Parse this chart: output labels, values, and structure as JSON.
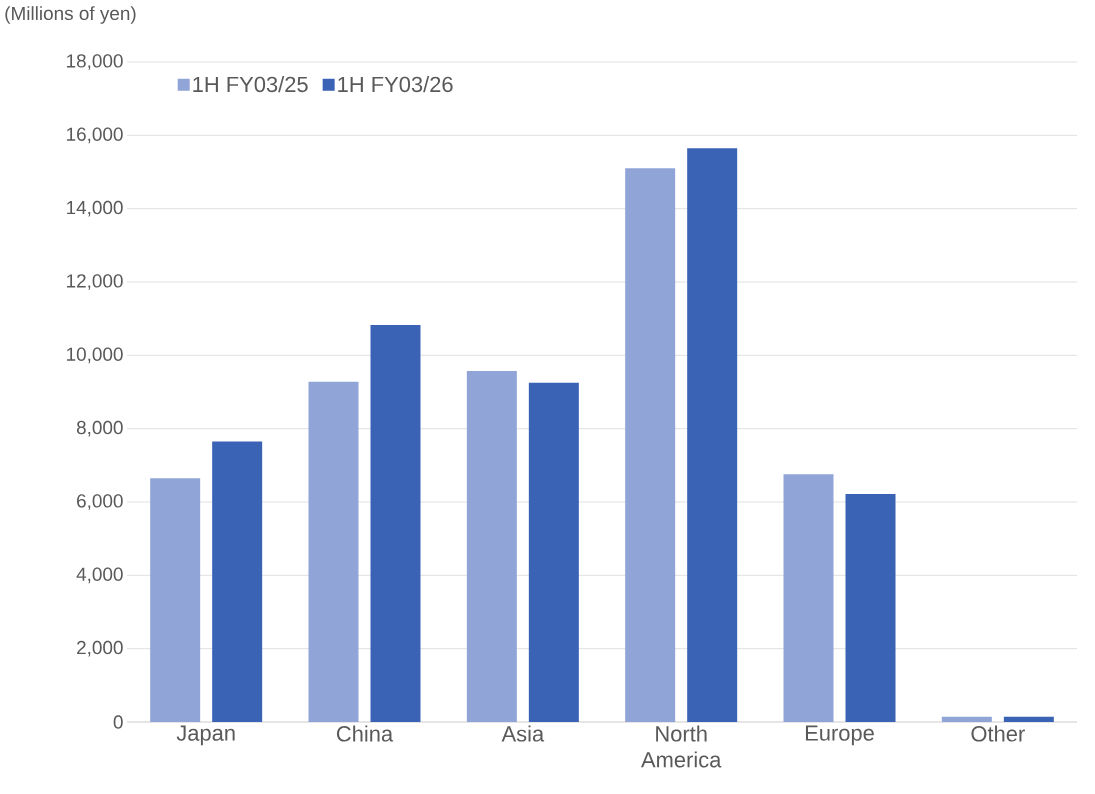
{
  "chart_data": {
    "type": "bar",
    "ylabel": "(Millions of yen)",
    "categories": [
      "Japan",
      "China",
      "Asia",
      "North America",
      "Europe",
      "Other"
    ],
    "series": [
      {
        "name": "1H FY03/25",
        "color": "#90a4d8",
        "values": [
          6650,
          9280,
          9570,
          15100,
          6760,
          140
        ]
      },
      {
        "name": "1H FY03/26",
        "color": "#3a62b5",
        "values": [
          7650,
          10830,
          9250,
          15650,
          6220,
          140
        ]
      }
    ],
    "ylim": [
      0,
      18000
    ],
    "yticks": [
      {
        "value": 0,
        "label": "0"
      },
      {
        "value": 2000,
        "label": "2,000"
      },
      {
        "value": 4000,
        "label": "4,000"
      },
      {
        "value": 6000,
        "label": "6,000"
      },
      {
        "value": 8000,
        "label": "8,000"
      },
      {
        "value": 10000,
        "label": "10,000"
      },
      {
        "value": 12000,
        "label": "12,000"
      },
      {
        "value": 14000,
        "label": "14,000"
      },
      {
        "value": 16000,
        "label": "16,000"
      },
      {
        "value": 18000,
        "label": "18,000"
      }
    ],
    "grid": "y",
    "legend": "top left"
  }
}
